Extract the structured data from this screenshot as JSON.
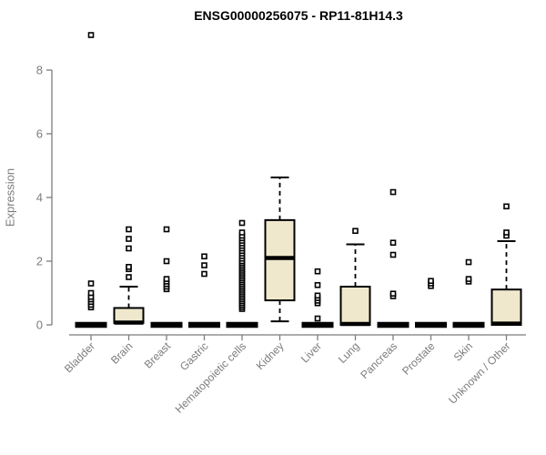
{
  "chart_data": {
    "type": "box",
    "title": "ENSG00000256075 - RP11-81H14.3",
    "ylabel": "Expression",
    "xlabel": "",
    "yticks": [
      0,
      2,
      4,
      6,
      8
    ],
    "ylim": [
      -0.15,
      9.35
    ],
    "grid": false,
    "legend": false,
    "categories": [
      "Bladder",
      "Brain",
      "Breast",
      "Gastric",
      "Hematopoietic cells",
      "Kidney",
      "Liver",
      "Lung",
      "Pancreas",
      "Prostate",
      "Skin",
      "Unknown / Other"
    ],
    "series": [
      {
        "name": "Bladder",
        "q1": 0,
        "median": 0,
        "q3": 0,
        "whisker_low": 0,
        "whisker_high": 0,
        "outliers": [
          0.55,
          0.63,
          0.72,
          0.8,
          0.88,
          1.0,
          1.3,
          9.1
        ]
      },
      {
        "name": "Brain",
        "q1": 0.06,
        "median": 0.07,
        "q3": 0.53,
        "whisker_low": 0.06,
        "whisker_high": 1.2,
        "outliers": [
          1.5,
          1.75,
          1.82,
          2.4,
          2.7,
          3.0
        ]
      },
      {
        "name": "Breast",
        "q1": 0,
        "median": 0,
        "q3": 0,
        "whisker_low": 0,
        "whisker_high": 0,
        "outliers": [
          1.12,
          1.2,
          1.28,
          1.36,
          1.44,
          2.0,
          3.0
        ]
      },
      {
        "name": "Gastric",
        "q1": 0,
        "median": 0,
        "q3": 0,
        "whisker_low": 0,
        "whisker_high": 0,
        "outliers": [
          1.6,
          1.87,
          2.15
        ]
      },
      {
        "name": "Hematopoietic cells",
        "q1": 0,
        "median": 0,
        "q3": 0,
        "whisker_low": 0,
        "whisker_high": 0,
        "outliers": [
          0.5,
          0.56,
          0.62,
          0.68,
          0.74,
          0.8,
          0.86,
          0.92,
          0.98,
          1.04,
          1.1,
          1.16,
          1.22,
          1.28,
          1.34,
          1.4,
          1.46,
          1.52,
          1.58,
          1.64,
          1.7,
          1.76,
          1.82,
          1.88,
          1.94,
          2.0,
          2.08,
          2.16,
          2.24,
          2.32,
          2.4,
          2.48,
          2.56,
          2.64,
          2.72,
          2.8,
          2.9,
          3.2
        ]
      },
      {
        "name": "Kidney",
        "q1": 0.77,
        "median": 2.1,
        "q3": 3.29,
        "whisker_low": 0.11,
        "whisker_high": 4.63,
        "outliers": []
      },
      {
        "name": "Liver",
        "q1": 0,
        "median": 0,
        "q3": 0,
        "whisker_low": 0,
        "whisker_high": 0,
        "outliers": [
          0.2,
          0.68,
          0.76,
          0.84,
          0.92,
          1.25,
          1.68
        ]
      },
      {
        "name": "Lung",
        "q1": 0,
        "median": 0.03,
        "q3": 1.2,
        "whisker_low": 0,
        "whisker_high": 2.53,
        "outliers": [
          2.95
        ]
      },
      {
        "name": "Pancreas",
        "q1": 0,
        "median": 0,
        "q3": 0,
        "whisker_low": 0,
        "whisker_high": 0,
        "outliers": [
          0.9,
          0.98,
          2.2,
          2.58,
          4.17
        ]
      },
      {
        "name": "Prostate",
        "q1": 0,
        "median": 0,
        "q3": 0,
        "whisker_low": 0,
        "whisker_high": 0,
        "outliers": [
          1.22,
          1.3,
          1.38
        ]
      },
      {
        "name": "Skin",
        "q1": 0,
        "median": 0,
        "q3": 0,
        "whisker_low": 0,
        "whisker_high": 0,
        "outliers": [
          1.36,
          1.44,
          1.97
        ]
      },
      {
        "name": "Unknown / Other",
        "q1": 0,
        "median": 0.04,
        "q3": 1.11,
        "whisker_low": 0,
        "whisker_high": 2.63,
        "outliers": [
          2.8,
          2.9,
          3.72
        ]
      }
    ],
    "colors": {
      "box_fill": "#EFE8CC",
      "box_stroke": "#000000",
      "median": "#000000",
      "axis": "#7C7C7C",
      "tick_text": "#7C7C7C",
      "title_text": "#000000",
      "outlier_fill": "#FFFFFF"
    }
  }
}
